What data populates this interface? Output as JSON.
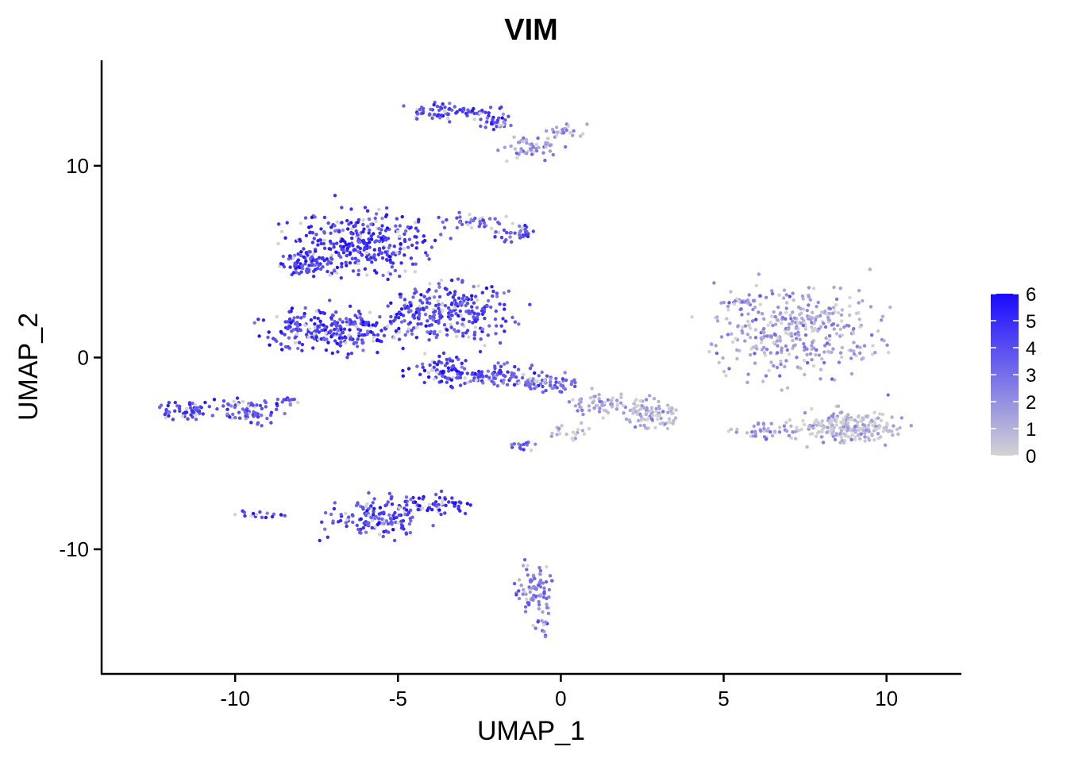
{
  "chart_data": {
    "type": "scatter",
    "title": "VIM",
    "xlabel": "UMAP_1",
    "ylabel": "UMAP_2",
    "xlim": [
      -14.1,
      12.3
    ],
    "ylim": [
      -16.5,
      15.5
    ],
    "x_ticks": [
      -10,
      -5,
      0,
      5,
      10
    ],
    "x_tick_labels": [
      "-10",
      "-5",
      "0",
      "5",
      "10"
    ],
    "y_ticks": [
      10,
      0,
      -10
    ],
    "y_tick_labels": [
      "10",
      "0",
      "-10"
    ],
    "grid": false,
    "legend": {
      "placement": "right",
      "type": "colorbar",
      "values": [
        0,
        1,
        2,
        3,
        4,
        5,
        6
      ],
      "labels": [
        "0",
        "1",
        "2",
        "3",
        "4",
        "5",
        "6"
      ]
    },
    "color_scale": {
      "low": "#d3d3d3",
      "high": "#1a0aff",
      "min": 0,
      "max": 6
    },
    "clusters": [
      {
        "x": -6.2,
        "y": 6.0,
        "sx": 1.5,
        "sy": 1.2,
        "expr": 4.6,
        "n": 330
      },
      {
        "x": -7.8,
        "y": 4.9,
        "sx": 0.5,
        "sy": 0.4,
        "expr": 4.7,
        "n": 60
      },
      {
        "x": -6.9,
        "y": 1.4,
        "sx": 1.5,
        "sy": 0.8,
        "expr": 4.6,
        "n": 260
      },
      {
        "x": -3.4,
        "y": 2.4,
        "sx": 1.3,
        "sy": 1.1,
        "expr": 4.2,
        "n": 280
      },
      {
        "x": -3.5,
        "y": -0.6,
        "sx": 0.7,
        "sy": 0.6,
        "expr": 4.8,
        "n": 70
      },
      {
        "x": -2.1,
        "y": -0.9,
        "sx": 1.1,
        "sy": 0.4,
        "expr": 4.2,
        "n": 90
      },
      {
        "x": -0.6,
        "y": -1.4,
        "sx": 0.9,
        "sy": 0.35,
        "expr": 3.3,
        "n": 60
      },
      {
        "x": 1.4,
        "y": -2.4,
        "sx": 0.9,
        "sy": 0.4,
        "expr": 1.3,
        "n": 70
      },
      {
        "x": 2.8,
        "y": -3.0,
        "sx": 0.6,
        "sy": 0.5,
        "expr": 1.0,
        "n": 80
      },
      {
        "x": 0.3,
        "y": -3.8,
        "sx": 0.5,
        "sy": 0.3,
        "expr": 1.0,
        "n": 20
      },
      {
        "x": -1.2,
        "y": -4.6,
        "sx": 0.25,
        "sy": 0.2,
        "expr": 3.0,
        "n": 14
      },
      {
        "x": -3.3,
        "y": 12.8,
        "sx": 1.0,
        "sy": 0.3,
        "expr": 4.3,
        "n": 80
      },
      {
        "x": -1.8,
        "y": 12.2,
        "sx": 0.5,
        "sy": 0.3,
        "expr": 3.6,
        "n": 25
      },
      {
        "x": -0.9,
        "y": 11.0,
        "sx": 0.7,
        "sy": 0.45,
        "expr": 2.1,
        "n": 50
      },
      {
        "x": 0.1,
        "y": 11.8,
        "sx": 0.4,
        "sy": 0.3,
        "expr": 1.8,
        "n": 22
      },
      {
        "x": -2.8,
        "y": 7.1,
        "sx": 0.6,
        "sy": 0.3,
        "expr": 3.3,
        "n": 35
      },
      {
        "x": -1.4,
        "y": 6.5,
        "sx": 0.55,
        "sy": 0.35,
        "expr": 3.9,
        "n": 40
      },
      {
        "x": -11.4,
        "y": -2.7,
        "sx": 0.6,
        "sy": 0.35,
        "expr": 4.2,
        "n": 60
      },
      {
        "x": -9.6,
        "y": -2.8,
        "sx": 0.6,
        "sy": 0.5,
        "expr": 3.8,
        "n": 70
      },
      {
        "x": -8.4,
        "y": -2.3,
        "sx": 0.4,
        "sy": 0.15,
        "expr": 4.0,
        "n": 14
      },
      {
        "x": -9.2,
        "y": -8.2,
        "sx": 0.45,
        "sy": 0.15,
        "expr": 4.2,
        "n": 18
      },
      {
        "x": -5.6,
        "y": -8.3,
        "sx": 1.0,
        "sy": 0.75,
        "expr": 4.3,
        "n": 150
      },
      {
        "x": -4.0,
        "y": -7.7,
        "sx": 0.8,
        "sy": 0.35,
        "expr": 5.0,
        "n": 60
      },
      {
        "x": -0.8,
        "y": -12.0,
        "sx": 0.4,
        "sy": 0.9,
        "expr": 2.6,
        "n": 80
      },
      {
        "x": -0.5,
        "y": -14.0,
        "sx": 0.15,
        "sy": 0.35,
        "expr": 3.1,
        "n": 12
      },
      {
        "x": 7.3,
        "y": 1.4,
        "sx": 1.7,
        "sy": 1.6,
        "expr": 1.6,
        "n": 360
      },
      {
        "x": 5.6,
        "y": 2.9,
        "sx": 0.4,
        "sy": 0.25,
        "expr": 1.8,
        "n": 20
      },
      {
        "x": 8.9,
        "y": -3.6,
        "sx": 1.1,
        "sy": 0.6,
        "expr": 0.8,
        "n": 220
      },
      {
        "x": 6.3,
        "y": -3.8,
        "sx": 0.7,
        "sy": 0.3,
        "expr": 2.0,
        "n": 40
      }
    ]
  }
}
